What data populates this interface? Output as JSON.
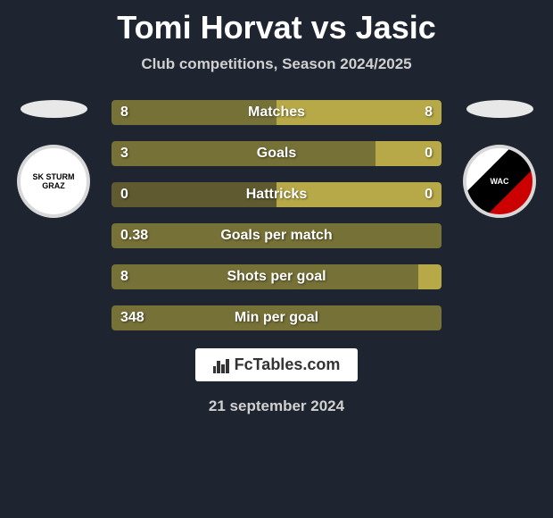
{
  "title": "Tomi Horvat vs Jasic",
  "subtitle": "Club competitions, Season 2024/2025",
  "date": "21 september 2024",
  "branding_text": "FcTables.com",
  "left_club": "SK STURM GRAZ",
  "right_club": "WAC",
  "colors": {
    "background": "#1e2530",
    "bar_left": "#767137",
    "bar_left_dark": "#5f5a30",
    "bar_right": "#b7a947",
    "title_text": "#ffffff",
    "subtitle_text": "#d0d0d0"
  },
  "stats": [
    {
      "label": "Matches",
      "left_value": "8",
      "right_value": "8",
      "left_pct": 50,
      "right_pct": 50,
      "dark": false
    },
    {
      "label": "Goals",
      "left_value": "3",
      "right_value": "0",
      "left_pct": 80,
      "right_pct": 20,
      "dark": false
    },
    {
      "label": "Hattricks",
      "left_value": "0",
      "right_value": "0",
      "left_pct": 50,
      "right_pct": 50,
      "dark": true
    },
    {
      "label": "Goals per match",
      "left_value": "0.38",
      "right_value": "",
      "left_pct": 100,
      "right_pct": 0,
      "dark": false
    },
    {
      "label": "Shots per goal",
      "left_value": "8",
      "right_value": "",
      "left_pct": 93,
      "right_pct": 7,
      "dark": false
    },
    {
      "label": "Min per goal",
      "left_value": "348",
      "right_value": "",
      "left_pct": 100,
      "right_pct": 0,
      "dark": false
    }
  ]
}
